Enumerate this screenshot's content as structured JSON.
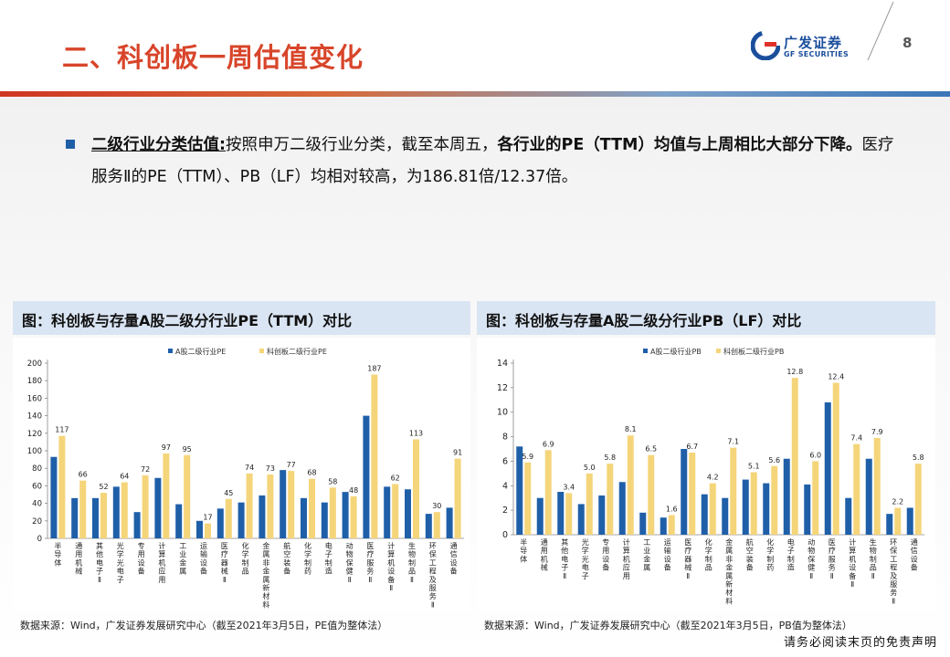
{
  "header": {
    "title": "二、科创板一周估值变化",
    "page_number": "8",
    "logo": {
      "cn": "广发证券",
      "en": "GF SECURITIES"
    }
  },
  "colors": {
    "title_red": "#d8452a",
    "brand_blue": "#1b4f9c",
    "series_a": "#1f5fa8",
    "series_b": "#f5d57a",
    "header_fill": "#dae5f3"
  },
  "summary": {
    "lead": "二级行业分类估值:",
    "part1": "按照申万二级行业分类，截至本周五，",
    "bold": "各行业的PE（TTM）均值与上周相比大部分下降。",
    "part2": "医疗服务Ⅱ的PE（TTM）、PB（LF）均相对较高，为186.81倍/12.37倍。"
  },
  "chart_data": [
    {
      "type": "bar",
      "title": "图：科创板与存量A股二级分行业PE（TTM）对比",
      "categories": [
        "半导体",
        "通用机械",
        "其他电子Ⅱ",
        "光学光电子",
        "专用设备",
        "计算机应用",
        "工业金属",
        "运输设备",
        "医疗器械Ⅱ",
        "化学制品",
        "金属非金属新材料",
        "航空装备",
        "化学制药",
        "电子制造",
        "动物保健Ⅱ",
        "医疗服务Ⅱ",
        "计算机设备Ⅱ",
        "生物制品Ⅱ",
        "环保工程及服务Ⅱ",
        "通信设备"
      ],
      "series": [
        {
          "name": "A股二级行业PE",
          "values": [
            93,
            46,
            46,
            59,
            30,
            69,
            39,
            20,
            34,
            41,
            49,
            78,
            46,
            41,
            53,
            140,
            59,
            56,
            28,
            35
          ]
        },
        {
          "name": "科创板二级行业PE",
          "values": [
            117,
            66,
            52,
            64,
            72,
            97,
            95,
            17,
            45,
            74,
            73,
            77,
            68,
            58,
            48,
            187,
            62,
            113,
            30,
            91
          ]
        }
      ],
      "data_labels": [
        "117",
        "66",
        "52",
        "64",
        "72",
        "97",
        "95",
        "17",
        "45",
        "74",
        "73",
        "77",
        "68",
        "58",
        "48",
        "187",
        "62",
        "113",
        "30",
        "91"
      ],
      "ylim": [
        0,
        200
      ],
      "yticks": [
        "0",
        "20",
        "40",
        "60",
        "80",
        "100",
        "120",
        "140",
        "160",
        "180",
        "200"
      ],
      "xlabel": "",
      "ylabel": "",
      "source": "数据来源：Wind，广发证券发展研究中心（截至2021年3月5日，PE值为整体法）"
    },
    {
      "type": "bar",
      "title": "图：科创板与存量A股二级分行业PB（LF）对比",
      "categories": [
        "半导体",
        "通用机械",
        "其他电子Ⅱ",
        "光学光电子",
        "专用设备",
        "计算机应用",
        "工业金属",
        "运输设备",
        "医疗器械Ⅱ",
        "化学制品",
        "金属非金属新材料",
        "航空装备",
        "化学制药",
        "电子制造",
        "动物保健Ⅱ",
        "医疗服务Ⅱ",
        "计算机设备Ⅱ",
        "生物制品Ⅱ",
        "环保工程及服务Ⅱ",
        "通信设备"
      ],
      "series": [
        {
          "name": "A股二级行业PB",
          "values": [
            7.2,
            3.0,
            3.5,
            2.5,
            3.2,
            4.3,
            1.8,
            1.4,
            7.0,
            3.3,
            3.0,
            4.5,
            4.2,
            6.2,
            4.1,
            10.8,
            3.0,
            6.2,
            1.7,
            2.2
          ]
        },
        {
          "name": "科创板二级行业PB",
          "values": [
            5.9,
            6.9,
            3.4,
            5.0,
            5.8,
            8.1,
            6.5,
            1.6,
            6.7,
            4.2,
            7.1,
            5.1,
            5.6,
            12.8,
            6.0,
            12.4,
            7.4,
            7.9,
            2.2,
            5.8
          ]
        }
      ],
      "data_labels": [
        "5.9",
        "6.9",
        "3.4",
        "5.0",
        "5.8",
        "8.1",
        "6.5",
        "1.6",
        "6.7",
        "4.2",
        "7.1",
        "5.1",
        "5.6",
        "12.8",
        "6.0",
        "12.4",
        "7.4",
        "7.9",
        "2.2",
        "5.8"
      ],
      "ylim": [
        0,
        14
      ],
      "yticks": [
        "0",
        "2",
        "4",
        "6",
        "8",
        "10",
        "12",
        "14"
      ],
      "xlabel": "",
      "ylabel": "",
      "source": "数据来源：Wind，广发证券发展研究中心（截至2021年3月5日，PB值为整体法）"
    }
  ],
  "footer": {
    "disclaimer": "请务必阅读末页的免责声明"
  }
}
